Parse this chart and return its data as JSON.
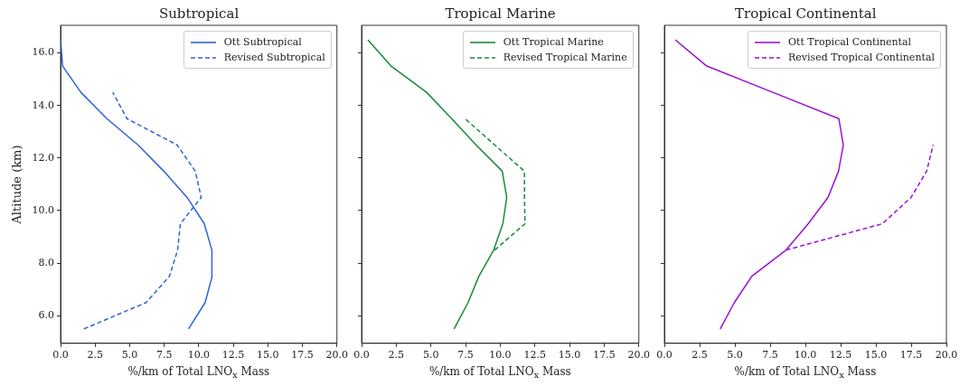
{
  "chart_data": [
    {
      "type": "line",
      "title": "Subtropical",
      "xlabel": "%/km of Total LNO$_{x}$ Mass",
      "ylabel": "Altitude (km)",
      "legend": "top right",
      "xlim": [
        0,
        20
      ],
      "ylim": [
        4.95,
        17.05
      ],
      "xticks": [
        {
          "value": 0,
          "label": "0.0"
        },
        {
          "value": 2.5,
          "label": "2.5"
        },
        {
          "value": 5,
          "label": "5.0"
        },
        {
          "value": 7.5,
          "label": "7.5"
        },
        {
          "value": 10,
          "label": "10.0"
        },
        {
          "value": 12.5,
          "label": "12.5"
        },
        {
          "value": 15,
          "label": "15.0"
        },
        {
          "value": 17.5,
          "label": "17.5"
        },
        {
          "value": 20,
          "label": "20.0"
        }
      ],
      "yticks": [
        {
          "value": 6,
          "label": "6.0"
        },
        {
          "value": 8,
          "label": "8.0"
        },
        {
          "value": 10,
          "label": "10.0"
        },
        {
          "value": 12,
          "label": "12.0"
        },
        {
          "value": 14,
          "label": "14.0"
        },
        {
          "value": 16,
          "label": "16.0"
        }
      ],
      "series": [
        {
          "name": "Ott Subtropical",
          "color": "#2f62d8",
          "line_style": "solid",
          "x": [
            9.26,
            10.46,
            10.97,
            10.95,
            10.4,
            9.16,
            7.47,
            5.6,
            3.35,
            1.47,
            0.15,
            0.0
          ],
          "values": [
            5.5,
            6.5,
            7.5,
            8.5,
            9.5,
            10.5,
            11.5,
            12.5,
            13.5,
            14.5,
            15.5,
            16.5
          ]
        },
        {
          "name": "Revised Subtropical",
          "color": "#2f62d8",
          "line_style": "dashed",
          "x": [
            1.69,
            6.19,
            7.88,
            8.47,
            8.67,
            10.18,
            9.75,
            8.43,
            4.8,
            3.78
          ],
          "values": [
            5.5,
            6.5,
            7.5,
            8.5,
            9.5,
            10.5,
            11.5,
            12.5,
            13.5,
            14.5
          ]
        }
      ]
    },
    {
      "type": "line",
      "title": "Tropical Marine",
      "xlabel": "%/km of Total LNO$_{x}$ Mass",
      "legend": "top right",
      "tick_labels": "x",
      "xlim": [
        0,
        20
      ],
      "ylim": [
        4.95,
        17.05
      ],
      "xticks": [
        {
          "value": 0,
          "label": "0.0"
        },
        {
          "value": 2.5,
          "label": "2.5"
        },
        {
          "value": 5,
          "label": "5.0"
        },
        {
          "value": 7.5,
          "label": "7.5"
        },
        {
          "value": 10,
          "label": "10.0"
        },
        {
          "value": 12.5,
          "label": "12.5"
        },
        {
          "value": 15,
          "label": "15.0"
        },
        {
          "value": 17.5,
          "label": "17.5"
        },
        {
          "value": 20,
          "label": "20.0"
        }
      ],
      "yticks": [
        {
          "value": 6,
          "label": null
        },
        {
          "value": 8,
          "label": null
        },
        {
          "value": 10,
          "label": null
        },
        {
          "value": 12,
          "label": null
        },
        {
          "value": 14,
          "label": null
        },
        {
          "value": 16,
          "label": null
        }
      ],
      "series": [
        {
          "name": "Ott Tropical Marine",
          "color": "#1a8a3a",
          "line_style": "solid",
          "x": [
            6.67,
            7.68,
            8.46,
            9.53,
            10.19,
            10.47,
            10.15,
            8.25,
            6.5,
            4.69,
            2.13,
            0.45
          ],
          "values": [
            5.5,
            6.5,
            7.5,
            8.5,
            9.5,
            10.5,
            11.5,
            12.5,
            13.5,
            14.5,
            15.5,
            16.5
          ]
        },
        {
          "name": "Revised Tropical Marine",
          "color": "#1a8a3a",
          "line_style": "dashed",
          "x": [
            9.6,
            11.79,
            11.75,
            11.75,
            9.6,
            7.46
          ],
          "values": [
            8.5,
            9.5,
            10.5,
            11.5,
            12.5,
            13.5
          ]
        }
      ]
    },
    {
      "type": "line",
      "title": "Tropical Continental",
      "xlabel": "%/km of Total LNO$_{x}$ Mass",
      "legend": "top right",
      "tick_labels": "x",
      "xlim": [
        0,
        20
      ],
      "ylim": [
        4.95,
        17.05
      ],
      "xticks": [
        {
          "value": 0,
          "label": "0.0"
        },
        {
          "value": 2.5,
          "label": "2.5"
        },
        {
          "value": 5,
          "label": "5.0"
        },
        {
          "value": 7.5,
          "label": "7.5"
        },
        {
          "value": 10,
          "label": "10.0"
        },
        {
          "value": 12.5,
          "label": "12.5"
        },
        {
          "value": 15,
          "label": "15.0"
        },
        {
          "value": 17.5,
          "label": "17.5"
        },
        {
          "value": 20,
          "label": "20.0"
        }
      ],
      "yticks": [
        {
          "value": 6,
          "label": null
        },
        {
          "value": 8,
          "label": null
        },
        {
          "value": 10,
          "label": null
        },
        {
          "value": 12,
          "label": null
        },
        {
          "value": 14,
          "label": null
        },
        {
          "value": 16,
          "label": null
        }
      ],
      "series": [
        {
          "name": "Ott Tropical Continental",
          "color": "#9b10d8",
          "line_style": "solid",
          "x": [
            3.96,
            4.96,
            6.2,
            8.63,
            10.2,
            11.6,
            12.35,
            12.69,
            12.37,
            7.69,
            3.0,
            0.77
          ],
          "values": [
            5.5,
            6.5,
            7.5,
            8.5,
            9.5,
            10.5,
            11.5,
            12.5,
            13.5,
            14.5,
            15.5,
            16.5
          ]
        },
        {
          "name": "Revised Tropical Continental",
          "color": "#9b10d8",
          "line_style": "dashed",
          "x": [
            8.63,
            15.46,
            17.49,
            18.6,
            19.06
          ],
          "values": [
            8.5,
            9.5,
            10.5,
            11.5,
            12.5
          ]
        }
      ]
    }
  ]
}
